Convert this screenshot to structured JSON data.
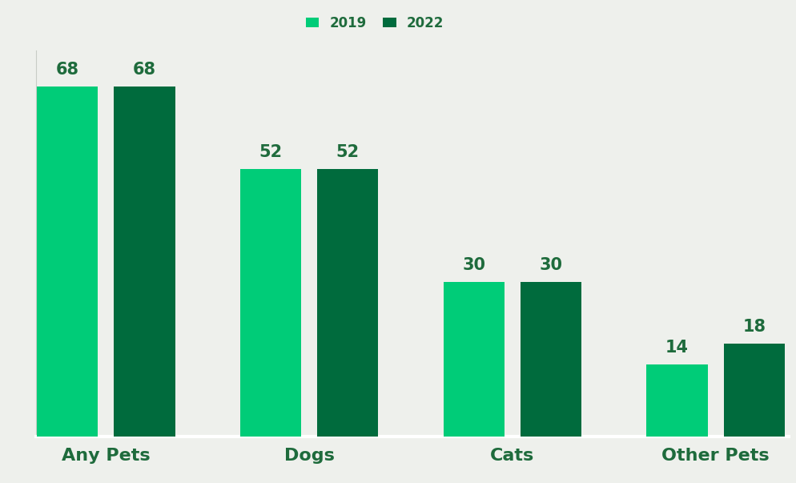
{
  "chart_data": {
    "type": "bar",
    "categories": [
      "Any Pets",
      "Dogs",
      "Cats",
      "Other Pets"
    ],
    "series": [
      {
        "name": "2019",
        "color": "#00cc78",
        "values": [
          68,
          52,
          30,
          14
        ]
      },
      {
        "name": "2022",
        "color": "#006b3d",
        "values": [
          68,
          52,
          30,
          18
        ]
      }
    ],
    "ylim": [
      0,
      75
    ],
    "data_labels": true,
    "tick_labels": "x",
    "grid": false,
    "legend": "upper center"
  }
}
